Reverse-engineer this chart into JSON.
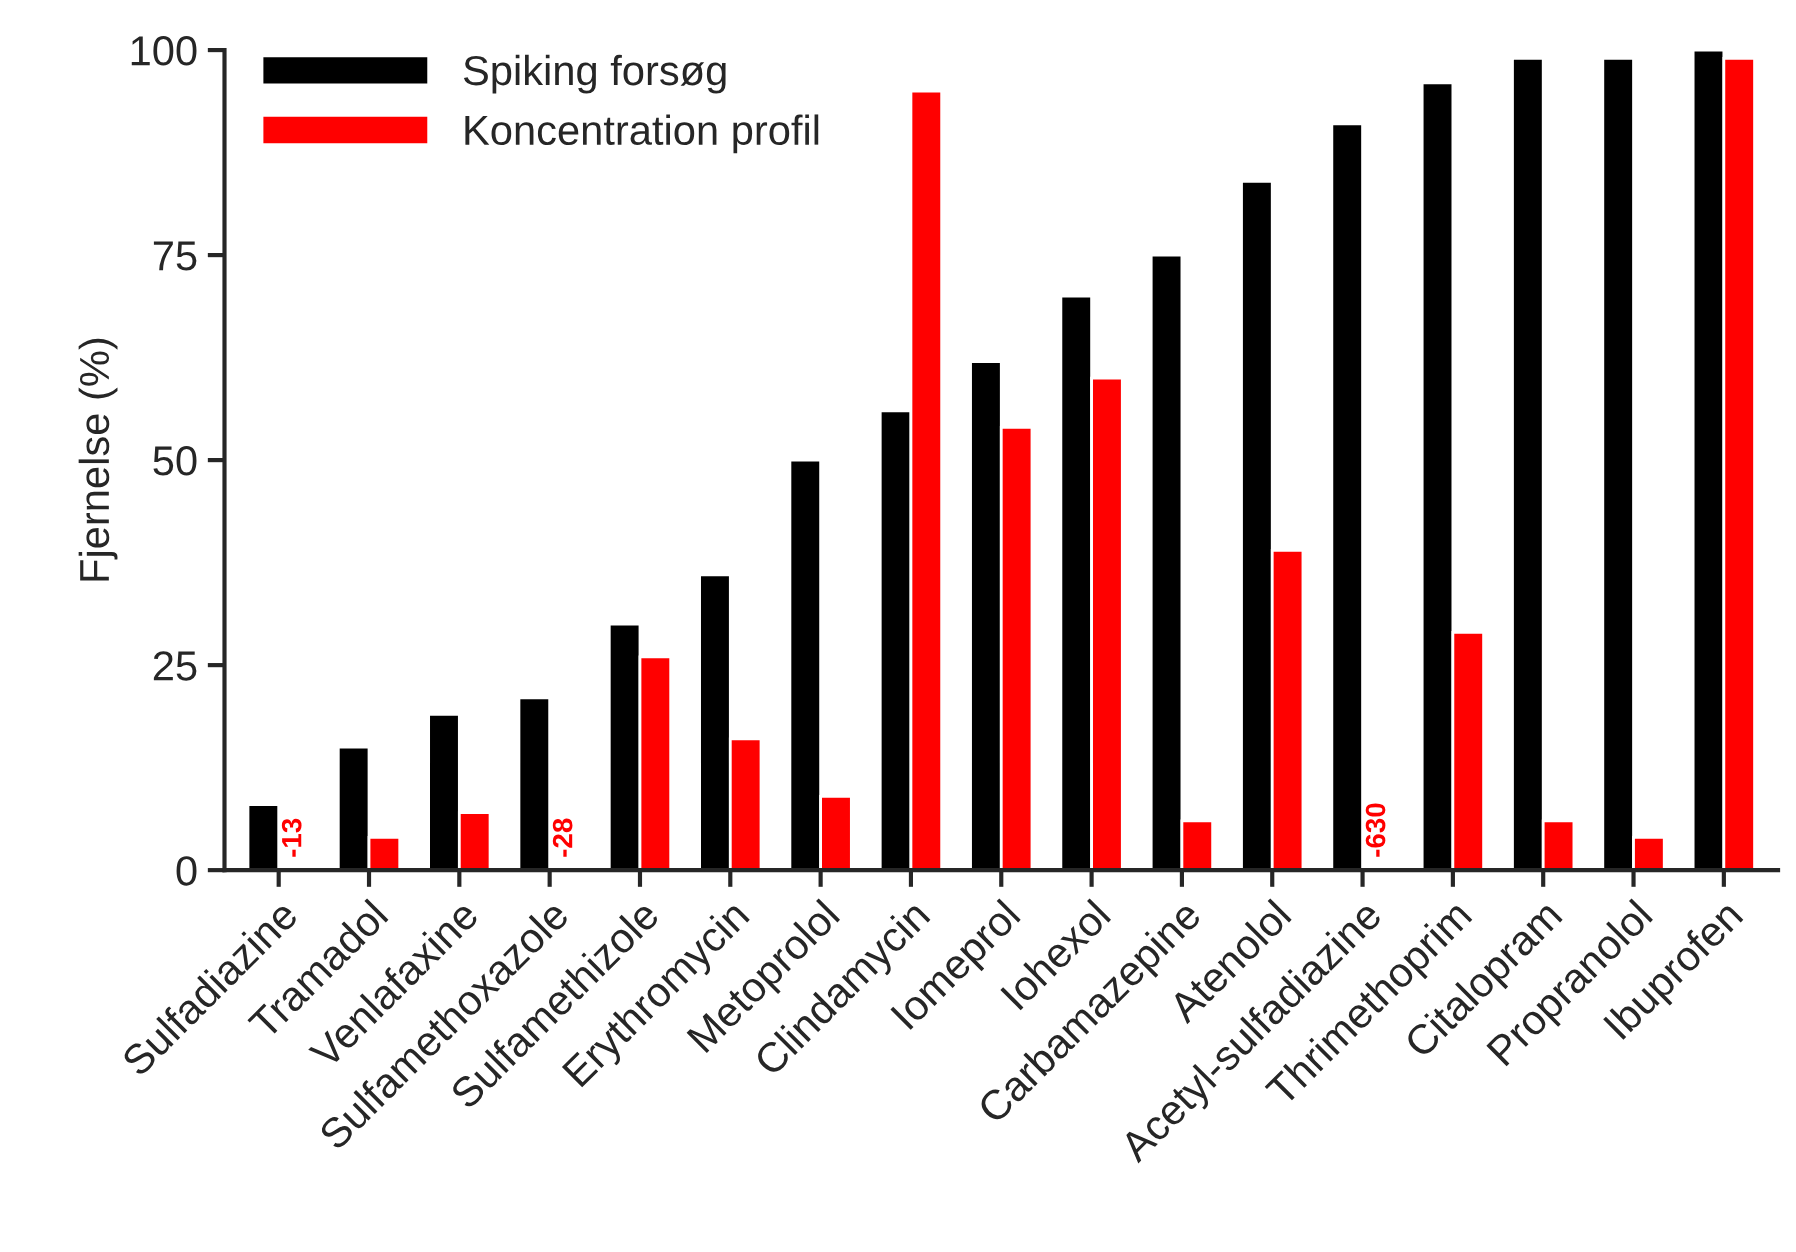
{
  "chart_data": {
    "type": "bar",
    "ylabel": "Fjernelse (%)",
    "categories": [
      "Sulfadiazine",
      "Tramadol",
      "Venlafaxine",
      "Sulfamethoxazole",
      "Sulfamethizole",
      "Erythromycin",
      "Metoprolol",
      "Clindamycin",
      "Iomeprol",
      "Iohexol",
      "Carbamazepine",
      "Atenolol",
      "Acetyl-sulfadiazine",
      "Thrimethoprim",
      "Citalopram",
      "Propranolol",
      "Ibuprofen"
    ],
    "series": [
      {
        "name": "Spiking forsøg",
        "color": "#000000",
        "values": [
          8,
          15,
          19,
          21,
          30,
          36,
          50,
          56,
          62,
          70,
          75,
          84,
          91,
          96,
          99,
          99,
          100
        ]
      },
      {
        "name": "Koncentration profil",
        "color": "#ff0000",
        "values": [
          null,
          4,
          7,
          null,
          26,
          16,
          9,
          95,
          54,
          60,
          6,
          39,
          null,
          29,
          6,
          4,
          99
        ],
        "value_labels": [
          "-13",
          null,
          null,
          "-28",
          null,
          null,
          null,
          null,
          null,
          null,
          null,
          null,
          "-630",
          null,
          null,
          null,
          null
        ]
      }
    ],
    "ylim": [
      0,
      100
    ],
    "yticks": [
      0,
      25,
      50,
      75,
      100
    ],
    "legend": "top left",
    "grid": false
  }
}
